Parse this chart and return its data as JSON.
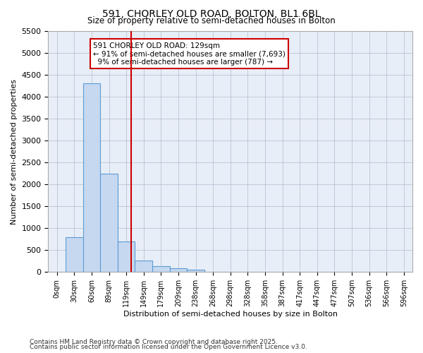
{
  "title1": "591, CHORLEY OLD ROAD, BOLTON, BL1 6BL",
  "title2": "Size of property relative to semi-detached houses in Bolton",
  "xlabel": "Distribution of semi-detached houses by size in Bolton",
  "ylabel": "Number of semi-detached properties",
  "bins": [
    "0sqm",
    "30sqm",
    "60sqm",
    "89sqm",
    "119sqm",
    "149sqm",
    "179sqm",
    "209sqm",
    "238sqm",
    "268sqm",
    "298sqm",
    "328sqm",
    "358sqm",
    "387sqm",
    "417sqm",
    "447sqm",
    "477sqm",
    "507sqm",
    "536sqm",
    "566sqm",
    "596sqm"
  ],
  "bar_values": [
    10,
    800,
    4300,
    2250,
    700,
    270,
    130,
    80,
    60,
    0,
    0,
    0,
    0,
    0,
    0,
    0,
    0,
    0,
    0,
    0,
    0
  ],
  "bar_color": "#c5d8f0",
  "bar_edge_color": "#5b9bd5",
  "property_line_x": 4.3,
  "property_sqm": 129,
  "pct_smaller": 91,
  "n_smaller": 7693,
  "pct_larger": 9,
  "n_larger": 787,
  "annotation_box_color": "#ffffff",
  "annotation_box_edge": "#cc0000",
  "vline_color": "#cc0000",
  "background_color": "#e8eef7",
  "ylim": [
    0,
    5500
  ],
  "yticks": [
    0,
    500,
    1000,
    1500,
    2000,
    2500,
    3000,
    3500,
    4000,
    4500,
    5000,
    5500
  ],
  "footer1": "Contains HM Land Registry data © Crown copyright and database right 2025.",
  "footer2": "Contains public sector information licensed under the Open Government Licence v3.0."
}
